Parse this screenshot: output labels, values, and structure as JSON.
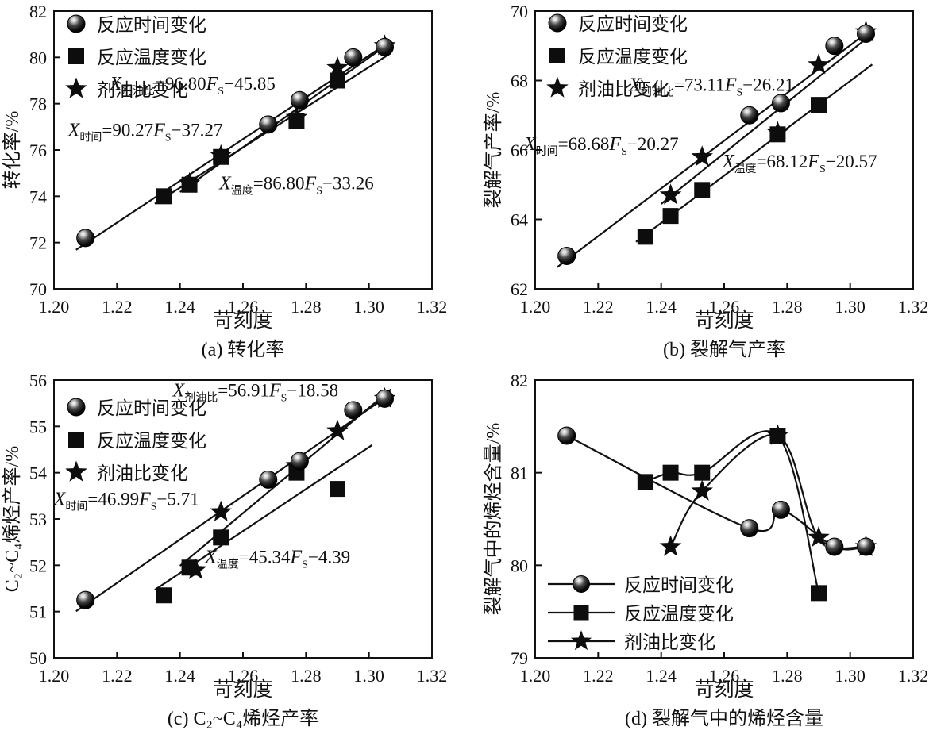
{
  "figure": {
    "background": "#ffffff",
    "ink": "#111111",
    "accent": "#000000"
  },
  "chart_data": [
    {
      "panel": "a",
      "type": "scatter",
      "caption": "(a) 转化率",
      "xlabel": "苛刻度",
      "ylabel": "转化率/%",
      "xlim": [
        1.2,
        1.32
      ],
      "xticks": [
        "1.20",
        "1.22",
        "1.24",
        "1.26",
        "1.28",
        "1.30",
        "1.32"
      ],
      "ylim": [
        70,
        82
      ],
      "yticks": [
        "70",
        "72",
        "74",
        "76",
        "78",
        "80",
        "82"
      ],
      "grid": false,
      "legend": {
        "style": "markers",
        "position": "upper-left",
        "dy": 16,
        "items": [
          {
            "marker": "sphere",
            "label": "反应时间变化"
          },
          {
            "marker": "square",
            "label": "反应温度变化"
          },
          {
            "marker": "star",
            "label": "剂油比变化"
          }
        ]
      },
      "series": [
        {
          "name": "反应时间变化",
          "marker": "sphere",
          "points": [
            [
              1.21,
              72.2
            ],
            [
              1.268,
              77.1
            ],
            [
              1.278,
              78.15
            ],
            [
              1.295,
              80.0
            ],
            [
              1.305,
              80.45
            ]
          ],
          "fit": {
            "slope": 90.27,
            "intercept": -37.27,
            "x1": 1.207,
            "x2": 1.307
          }
        },
        {
          "name": "反应温度变化",
          "marker": "square",
          "points": [
            [
              1.235,
              74.0
            ],
            [
              1.243,
              74.5
            ],
            [
              1.253,
              75.7
            ],
            [
              1.277,
              77.25
            ],
            [
              1.29,
              79.0
            ]
          ],
          "fit": {
            "slope": 86.8,
            "intercept": -33.26,
            "x1": 1.232,
            "x2": 1.307
          }
        },
        {
          "name": "剂油比变化",
          "marker": "star",
          "points": [
            [
              1.243,
              74.55
            ],
            [
              1.253,
              75.75
            ],
            [
              1.277,
              77.4
            ],
            [
              1.29,
              79.55
            ],
            [
              1.305,
              80.5
            ]
          ],
          "fit": {
            "slope": 96.8,
            "intercept": -45.85,
            "x1": 1.24,
            "x2": 1.307
          }
        }
      ],
      "equations": [
        {
          "lhs_var": "X",
          "lhs_sub": "剂油比",
          "rhs": "=96.80",
          "f_var": "F",
          "f_sub": "S",
          "tail": "−45.85",
          "at": [
            1.244,
            78.6
          ]
        },
        {
          "lhs_var": "X",
          "lhs_sub": "时间",
          "rhs": "=90.27",
          "f_var": "F",
          "f_sub": "S",
          "tail": "−37.27",
          "at": [
            1.229,
            76.6
          ]
        },
        {
          "lhs_var": "X",
          "lhs_sub": "温度",
          "rhs": "=86.80",
          "f_var": "F",
          "f_sub": "S",
          "tail": "−33.26",
          "at": [
            1.277,
            74.3
          ]
        }
      ]
    },
    {
      "panel": "b",
      "type": "scatter",
      "caption": "(b) 裂解气产率",
      "xlabel": "苛刻度",
      "ylabel": "裂解气产率/%",
      "xlim": [
        1.2,
        1.32
      ],
      "xticks": [
        "1.20",
        "1.22",
        "1.24",
        "1.26",
        "1.28",
        "1.30",
        "1.32"
      ],
      "ylim": [
        62,
        70
      ],
      "yticks": [
        "62",
        "64",
        "66",
        "68",
        "70"
      ],
      "grid": false,
      "legend": {
        "style": "markers",
        "position": "upper-left",
        "dy": 15,
        "items": [
          {
            "marker": "sphere",
            "label": "反应时间变化"
          },
          {
            "marker": "square",
            "label": "反应温度变化"
          },
          {
            "marker": "star",
            "label": "剂油比变化"
          }
        ]
      },
      "series": [
        {
          "name": "反应时间变化",
          "marker": "sphere",
          "points": [
            [
              1.21,
              62.95
            ],
            [
              1.268,
              67.0
            ],
            [
              1.278,
              67.35
            ],
            [
              1.295,
              69.0
            ],
            [
              1.305,
              69.35
            ]
          ],
          "fit": {
            "slope": 68.68,
            "intercept": -20.27,
            "x1": 1.207,
            "x2": 1.307
          }
        },
        {
          "name": "反应温度变化",
          "marker": "square",
          "points": [
            [
              1.235,
              63.5
            ],
            [
              1.243,
              64.1
            ],
            [
              1.253,
              64.85
            ],
            [
              1.277,
              66.45
            ],
            [
              1.29,
              67.3
            ]
          ],
          "fit": {
            "slope": 68.12,
            "intercept": -20.57,
            "x1": 1.232,
            "x2": 1.307
          }
        },
        {
          "name": "剂油比变化",
          "marker": "star",
          "points": [
            [
              1.243,
              64.7
            ],
            [
              1.253,
              65.8
            ],
            [
              1.277,
              66.5
            ],
            [
              1.29,
              68.45
            ],
            [
              1.305,
              69.4
            ]
          ],
          "fit": {
            "slope": 73.11,
            "intercept": -26.21,
            "x1": 1.24,
            "x2": 1.307
          }
        }
      ],
      "equations": [
        {
          "lhs_var": "X",
          "lhs_sub": "剂油比",
          "rhs": "=73.11",
          "f_var": "F",
          "f_sub": "S",
          "tail": "−26.21",
          "at": [
            1.256,
            67.7
          ]
        },
        {
          "lhs_var": "X",
          "lhs_sub": "时间",
          "rhs": "=68.68",
          "f_var": "F",
          "f_sub": "S",
          "tail": "−20.27",
          "at": [
            1.221,
            66.0
          ]
        },
        {
          "lhs_var": "X",
          "lhs_sub": "温度",
          "rhs": "=68.12",
          "f_var": "F",
          "f_sub": "S",
          "tail": "−20.57",
          "at": [
            1.284,
            65.5
          ]
        }
      ]
    },
    {
      "panel": "c",
      "type": "scatter",
      "caption": "(c) C₂~C₄烯烃产率",
      "xlabel": "苛刻度",
      "ylabel": "C₂~C₄烯烃产率/%",
      "xlim": [
        1.2,
        1.32
      ],
      "xticks": [
        "1.20",
        "1.22",
        "1.24",
        "1.26",
        "1.28",
        "1.30",
        "1.32"
      ],
      "ylim": [
        50,
        56
      ],
      "yticks": [
        "50",
        "51",
        "52",
        "53",
        "54",
        "55",
        "56"
      ],
      "grid": false,
      "legend": {
        "style": "markers",
        "position": "upper-left",
        "dy": 34,
        "items": [
          {
            "marker": "sphere",
            "label": "反应时间变化"
          },
          {
            "marker": "square",
            "label": "反应温度变化"
          },
          {
            "marker": "star",
            "label": "剂油比变化"
          }
        ]
      },
      "series": [
        {
          "name": "反应时间变化",
          "marker": "sphere",
          "points": [
            [
              1.21,
              51.25
            ],
            [
              1.268,
              53.85
            ],
            [
              1.278,
              54.25
            ],
            [
              1.295,
              55.35
            ],
            [
              1.305,
              55.6
            ]
          ],
          "fit": {
            "slope": 46.99,
            "intercept": -5.71,
            "x1": 1.207,
            "x2": 1.307
          }
        },
        {
          "name": "反应温度变化",
          "marker": "square",
          "points": [
            [
              1.235,
              51.35
            ],
            [
              1.243,
              51.95
            ],
            [
              1.253,
              52.6
            ],
            [
              1.277,
              54.0
            ],
            [
              1.29,
              53.65
            ]
          ],
          "fit": {
            "slope": 45.34,
            "intercept": -4.39,
            "x1": 1.232,
            "x2": 1.301
          }
        },
        {
          "name": "剂油比变化",
          "marker": "star",
          "points": [
            [
              1.245,
              51.9
            ],
            [
              1.253,
              53.15
            ],
            [
              1.277,
              54.15
            ],
            [
              1.29,
              54.9
            ],
            [
              1.305,
              55.6
            ]
          ],
          "fit": {
            "slope": 56.91,
            "intercept": -18.58,
            "x1": 1.24,
            "x2": 1.307
          }
        }
      ],
      "equations": [
        {
          "lhs_var": "X",
          "lhs_sub": "剂油比",
          "rhs": "=56.91",
          "f_var": "F",
          "f_sub": "S",
          "tail": "−18.58",
          "at": [
            1.264,
            55.65
          ]
        },
        {
          "lhs_var": "X",
          "lhs_sub": "时间",
          "rhs": "=46.99",
          "f_var": "F",
          "f_sub": "S",
          "tail": "−5.71",
          "at": [
            1.223,
            53.3
          ]
        },
        {
          "lhs_var": "X",
          "lhs_sub": "温度",
          "rhs": "=45.34",
          "f_var": "F",
          "f_sub": "S",
          "tail": "−4.39",
          "at": [
            1.271,
            52.05
          ]
        }
      ]
    },
    {
      "panel": "d",
      "type": "scatter-smooth",
      "caption": "(d) 裂解气中的烯烃含量",
      "xlabel": "苛刻度",
      "ylabel": "裂解气中的烯烃含量/%",
      "xlim": [
        1.2,
        1.32
      ],
      "xticks": [
        "1.20",
        "1.22",
        "1.24",
        "1.26",
        "1.28",
        "1.30",
        "1.32"
      ],
      "ylim": [
        79,
        82
      ],
      "yticks": [
        "79",
        "80",
        "81",
        "82"
      ],
      "grid": false,
      "legend": {
        "style": "lines",
        "position": "lower-left",
        "dy": 257,
        "items": [
          {
            "marker": "sphere",
            "label": "反应时间变化"
          },
          {
            "marker": "square",
            "label": "反应温度变化"
          },
          {
            "marker": "star",
            "label": "剂油比变化"
          }
        ]
      },
      "series": [
        {
          "name": "反应时间变化",
          "marker": "sphere",
          "smooth": true,
          "points": [
            [
              1.21,
              81.4
            ],
            [
              1.268,
              80.4
            ],
            [
              1.278,
              80.6
            ],
            [
              1.295,
              80.2
            ],
            [
              1.305,
              80.2
            ]
          ]
        },
        {
          "name": "反应温度变化",
          "marker": "square",
          "smooth": true,
          "points": [
            [
              1.235,
              80.9
            ],
            [
              1.243,
              81.0
            ],
            [
              1.253,
              81.0
            ],
            [
              1.277,
              81.4
            ],
            [
              1.29,
              79.7
            ]
          ]
        },
        {
          "name": "剂油比变化",
          "marker": "star",
          "smooth": true,
          "points": [
            [
              1.243,
              80.2
            ],
            [
              1.253,
              80.8
            ],
            [
              1.277,
              81.4
            ],
            [
              1.29,
              80.3
            ],
            [
              1.305,
              80.2
            ]
          ]
        }
      ],
      "equations": []
    }
  ]
}
